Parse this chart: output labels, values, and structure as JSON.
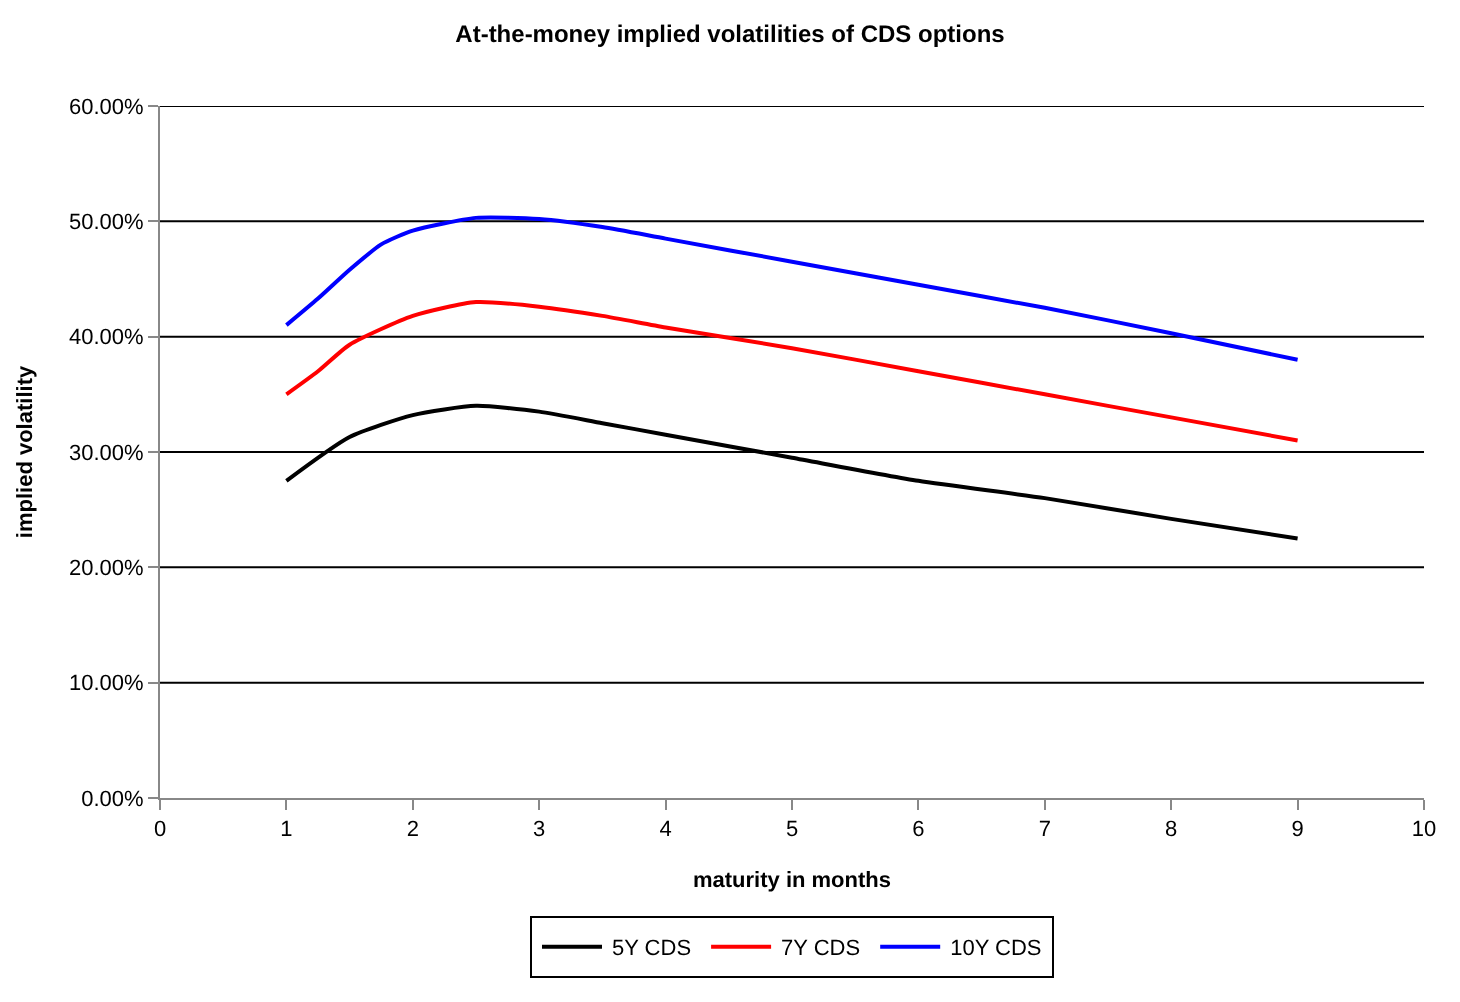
{
  "chart_data": {
    "type": "line",
    "title": "At-the-money implied volatilities of CDS options",
    "xlabel": "maturity in months",
    "ylabel": "implied volatility",
    "xlim": [
      0,
      10
    ],
    "xticks": [
      0,
      1,
      2,
      3,
      4,
      5,
      6,
      7,
      8,
      9,
      10
    ],
    "ylim": [
      0,
      60
    ],
    "yticks": [
      {
        "value": 0,
        "label": "0.00%"
      },
      {
        "value": 10,
        "label": "10.00%"
      },
      {
        "value": 20,
        "label": "20.00%"
      },
      {
        "value": 30,
        "label": "30.00%"
      },
      {
        "value": 40,
        "label": "40.00%"
      },
      {
        "value": 50,
        "label": "50.00%"
      },
      {
        "value": 60,
        "label": "60.00%"
      }
    ],
    "grid": "y",
    "legend": "bottom",
    "marker": "none",
    "line_style": "solid",
    "series": [
      {
        "name": "5Y CDS",
        "color": "#000000",
        "x": [
          1,
          1.5,
          2,
          2.5,
          3,
          3.5,
          4,
          5,
          6,
          7,
          8,
          9
        ],
        "values": [
          27.5,
          31.3,
          33.2,
          34,
          33.5,
          32.5,
          31.5,
          29.5,
          27.5,
          26,
          24.2,
          22.5
        ]
      },
      {
        "name": "7Y CDS",
        "color": "#ff0000",
        "x": [
          1,
          1.25,
          1.5,
          2,
          2.5,
          3,
          3.5,
          4,
          5,
          6,
          7,
          8,
          9
        ],
        "values": [
          35,
          37,
          39.3,
          41.8,
          43,
          42.6,
          41.8,
          40.8,
          39,
          37,
          35,
          33,
          31
        ]
      },
      {
        "name": "10Y CDS",
        "color": "#0000ff",
        "x": [
          1,
          1.25,
          1.5,
          1.75,
          2,
          2.5,
          3,
          3.5,
          4,
          5,
          6,
          7,
          8,
          9
        ],
        "values": [
          41,
          43.3,
          45.8,
          48,
          49.2,
          50.3,
          50.2,
          49.5,
          48.5,
          46.5,
          44.5,
          42.5,
          40.3,
          38
        ]
      }
    ]
  }
}
